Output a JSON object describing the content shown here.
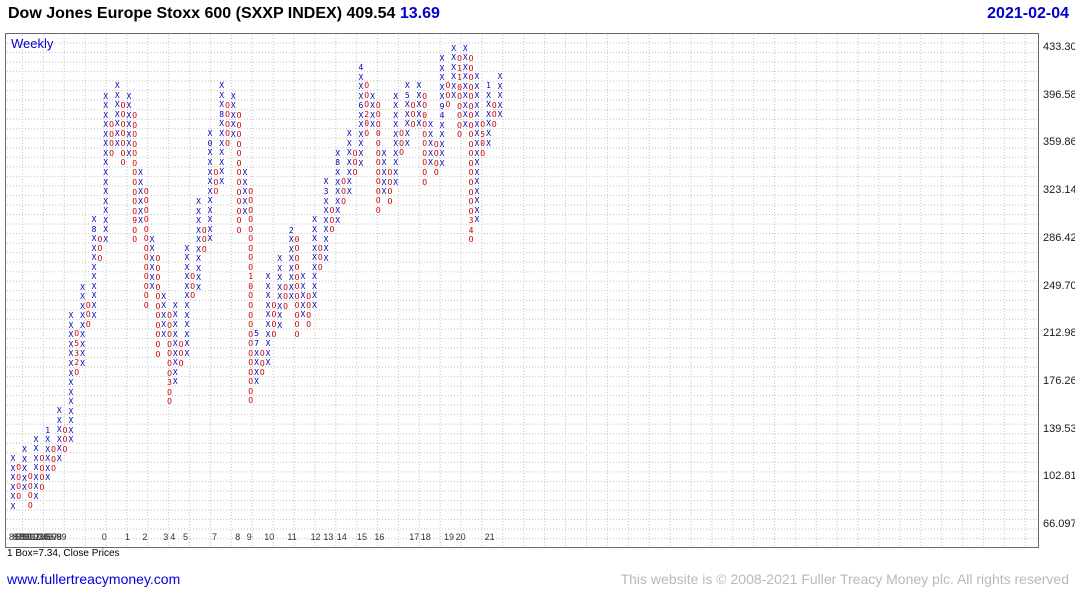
{
  "header": {
    "title": "Dow Jones Europe Stoxx 600 (SXXP INDEX) 409.54",
    "change": "13.69",
    "date": "2021-02-04"
  },
  "chart": {
    "frequency_label": "Weekly",
    "box_note": "1 Box=7.34, Close Prices"
  },
  "footer": {
    "site_link": "www.fullertreacymoney.com",
    "copyright": "This website is © 2008-2021 Fuller Treacy Money plc. All rights reserved"
  },
  "colors": {
    "x_column": "#0000bb",
    "o_column": "#cc0000",
    "accent_blue": "#0000cc",
    "grid": "#c9c9c9",
    "copyright_gray": "#b9b9b9"
  },
  "chart_data": {
    "type": "point-and-figure",
    "instrument": "Dow Jones Europe Stoxx 600 (SXXP INDEX)",
    "frequency": "Weekly",
    "last_price": 409.54,
    "change": 13.69,
    "box_size": 7.34,
    "price_basis": "Close Prices",
    "date": "2021-02-04",
    "y_axis": {
      "ticks": [
        "433.30",
        "396.58",
        "359.86",
        "323.14",
        "286.42",
        "249.70",
        "212.98",
        "176.26",
        "139.53",
        "102.81",
        "66.097"
      ],
      "range": [
        66.097,
        433.3
      ]
    },
    "x_labels": [
      {
        "t": "86",
        "c": 0
      },
      {
        "t": "87",
        "c": 0.6
      },
      {
        "t": "88",
        "c": 1.2
      },
      {
        "t": "89",
        "c": 1.8
      },
      {
        "t": "90",
        "c": 2.4
      },
      {
        "t": "91",
        "c": 3.0
      },
      {
        "t": "92",
        "c": 3.6
      },
      {
        "t": "93",
        "c": 4.2
      },
      {
        "t": "94",
        "c": 4.8
      },
      {
        "t": "95",
        "c": 5.4
      },
      {
        "t": "96",
        "c": 6.0
      },
      {
        "t": "97",
        "c": 6.6
      },
      {
        "t": "98",
        "c": 7.4
      },
      {
        "t": "99",
        "c": 8.2
      },
      {
        "t": "0",
        "c": 16
      },
      {
        "t": "1",
        "c": 20
      },
      {
        "t": "2",
        "c": 23
      },
      {
        "t": "3",
        "c": 26.6
      },
      {
        "t": "4",
        "c": 27.8
      },
      {
        "t": "5",
        "c": 30
      },
      {
        "t": "7",
        "c": 35
      },
      {
        "t": "8",
        "c": 39
      },
      {
        "t": "9",
        "c": 41
      },
      {
        "t": "10",
        "c": 44
      },
      {
        "t": "11",
        "c": 48
      },
      {
        "t": "12",
        "c": 52
      },
      {
        "t": "13",
        "c": 54.2
      },
      {
        "t": "14",
        "c": 56.5
      },
      {
        "t": "15",
        "c": 60
      },
      {
        "t": "16",
        "c": 63
      },
      {
        "t": "17",
        "c": 69
      },
      {
        "t": "18",
        "c": 71
      },
      {
        "t": "19",
        "c": 75
      },
      {
        "t": "20",
        "c": 77
      },
      {
        "t": "21",
        "c": 82
      }
    ],
    "columns": [
      {
        "t": "X",
        "lo": 81,
        "hi": 117
      },
      {
        "t": "O",
        "lo": 88,
        "hi": 110
      },
      {
        "t": "X",
        "lo": 95,
        "hi": 124
      },
      {
        "t": "O",
        "lo": 81,
        "hi": 103
      },
      {
        "t": "X",
        "lo": 88,
        "hi": 132
      },
      {
        "t": "O",
        "lo": 95,
        "hi": 117
      },
      {
        "t": "X",
        "lo": 103,
        "hi": 139,
        "g": "1XXXXX"
      },
      {
        "t": "O",
        "lo": 110,
        "hi": 124
      },
      {
        "t": "X",
        "lo": 117,
        "hi": 154
      },
      {
        "t": "O",
        "lo": 124,
        "hi": 139
      },
      {
        "t": "X",
        "lo": 132,
        "hi": 227
      },
      {
        "t": "O",
        "lo": 183,
        "hi": 213,
        "g": "O532O"
      },
      {
        "t": "X",
        "lo": 190,
        "hi": 249
      },
      {
        "t": "O",
        "lo": 220,
        "hi": 235
      },
      {
        "t": "X",
        "lo": 227,
        "hi": 301,
        "g": "X8XXXXXXXXX"
      },
      {
        "t": "O",
        "lo": 271,
        "hi": 286
      },
      {
        "t": "X",
        "lo": 286,
        "hi": 396
      },
      {
        "t": "O",
        "lo": 352,
        "hi": 374
      },
      {
        "t": "X",
        "lo": 359,
        "hi": 404
      },
      {
        "t": "O",
        "lo": 345,
        "hi": 389
      },
      {
        "t": "X",
        "lo": 352,
        "hi": 396
      },
      {
        "t": "O",
        "lo": 286,
        "hi": 381,
        "g": "OOOOOOOOOOO9OO"
      },
      {
        "t": "X",
        "lo": 301,
        "hi": 337
      },
      {
        "t": "O",
        "lo": 235,
        "hi": 323
      },
      {
        "t": "X",
        "lo": 249,
        "hi": 286
      },
      {
        "t": "O",
        "lo": 198,
        "hi": 271
      },
      {
        "t": "X",
        "lo": 213,
        "hi": 242
      },
      {
        "t": "O",
        "lo": 161,
        "hi": 227,
        "g": "OOOOOOO3OO"
      },
      {
        "t": "X",
        "lo": 176,
        "hi": 235
      },
      {
        "t": "O",
        "lo": 190,
        "hi": 205
      },
      {
        "t": "X",
        "lo": 198,
        "hi": 279
      },
      {
        "t": "O",
        "lo": 242,
        "hi": 257
      },
      {
        "t": "X",
        "lo": 249,
        "hi": 315
      },
      {
        "t": "O",
        "lo": 279,
        "hi": 293
      },
      {
        "t": "X",
        "lo": 286,
        "hi": 367,
        "g": "X0XXXXXXXXXX"
      },
      {
        "t": "O",
        "lo": 323,
        "hi": 337
      },
      {
        "t": "X",
        "lo": 330,
        "hi": 404,
        "g": "XXX8XXXXXXX"
      },
      {
        "t": "O",
        "lo": 359,
        "hi": 389
      },
      {
        "t": "X",
        "lo": 367,
        "hi": 396
      },
      {
        "t": "O",
        "lo": 293,
        "hi": 381
      },
      {
        "t": "X",
        "lo": 308,
        "hi": 337
      },
      {
        "t": "O",
        "lo": 161,
        "hi": 323,
        "g": "OOOOOOOOO10OOOOOOOOOOOO"
      },
      {
        "t": "X",
        "lo": 176,
        "hi": 213,
        "g": "57XXXX"
      },
      {
        "t": "O",
        "lo": 183,
        "hi": 198
      },
      {
        "t": "X",
        "lo": 190,
        "hi": 257
      },
      {
        "t": "O",
        "lo": 213,
        "hi": 235
      },
      {
        "t": "X",
        "lo": 220,
        "hi": 271
      },
      {
        "t": "O",
        "lo": 235,
        "hi": 249
      },
      {
        "t": "X",
        "lo": 242,
        "hi": 293,
        "g": "2XXXXXXX"
      },
      {
        "t": "O",
        "lo": 213,
        "hi": 286,
        "g": "0OOOOOOOOOO"
      },
      {
        "t": "X",
        "lo": 227,
        "hi": 257
      },
      {
        "t": "O",
        "lo": 220,
        "hi": 242
      },
      {
        "t": "X",
        "lo": 235,
        "hi": 301
      },
      {
        "t": "O",
        "lo": 264,
        "hi": 279
      },
      {
        "t": "X",
        "lo": 271,
        "hi": 330,
        "g": "X3XXXXXXX"
      },
      {
        "t": "O",
        "lo": 293,
        "hi": 308
      },
      {
        "t": "X",
        "lo": 301,
        "hi": 352,
        "g": "X8XXXXXX"
      },
      {
        "t": "O",
        "lo": 315,
        "hi": 330
      },
      {
        "t": "X",
        "lo": 323,
        "hi": 367
      },
      {
        "t": "O",
        "lo": 337,
        "hi": 352
      },
      {
        "t": "X",
        "lo": 345,
        "hi": 418,
        "g": "4XXX6XXXXXX"
      },
      {
        "t": "O",
        "lo": 367,
        "hi": 404,
        "g": "OOO20O"
      },
      {
        "t": "X",
        "lo": 374,
        "hi": 396
      },
      {
        "t": "O",
        "lo": 308,
        "hi": 389,
        "g": "OOO0OOOOOOOO"
      },
      {
        "t": "X",
        "lo": 323,
        "hi": 352
      },
      {
        "t": "O",
        "lo": 315,
        "hi": 337
      },
      {
        "t": "X",
        "lo": 330,
        "hi": 396
      },
      {
        "t": "O",
        "lo": 352,
        "hi": 367
      },
      {
        "t": "X",
        "lo": 359,
        "hi": 404,
        "g": "X5XXXXX"
      },
      {
        "t": "O",
        "lo": 374,
        "hi": 389
      },
      {
        "t": "X",
        "lo": 374,
        "hi": 404
      },
      {
        "t": "O",
        "lo": 330,
        "hi": 396,
        "g": "OO0OOOOOOO"
      },
      {
        "t": "X",
        "lo": 345,
        "hi": 374
      },
      {
        "t": "O",
        "lo": 337,
        "hi": 359
      },
      {
        "t": "X",
        "lo": 345,
        "hi": 425,
        "g": "XXXXX94XXXXX"
      },
      {
        "t": "O",
        "lo": 389,
        "hi": 404
      },
      {
        "t": "X",
        "lo": 396,
        "hi": 433
      },
      {
        "t": "O",
        "lo": 367,
        "hi": 425,
        "g": "O110OOOOO"
      },
      {
        "t": "X",
        "lo": 374,
        "hi": 433
      },
      {
        "t": "O",
        "lo": 286,
        "hi": 425,
        "g": "OOOOOOOOOOOOOOOOO34O"
      },
      {
        "t": "X",
        "lo": 301,
        "hi": 411
      },
      {
        "t": "O",
        "lo": 352,
        "hi": 374,
        "g": "O50O"
      },
      {
        "t": "X",
        "lo": 359,
        "hi": 404,
        "g": "1XXXXXX"
      },
      {
        "t": "O",
        "lo": 374,
        "hi": 389
      },
      {
        "t": "X",
        "lo": 381,
        "hi": 411
      }
    ]
  }
}
